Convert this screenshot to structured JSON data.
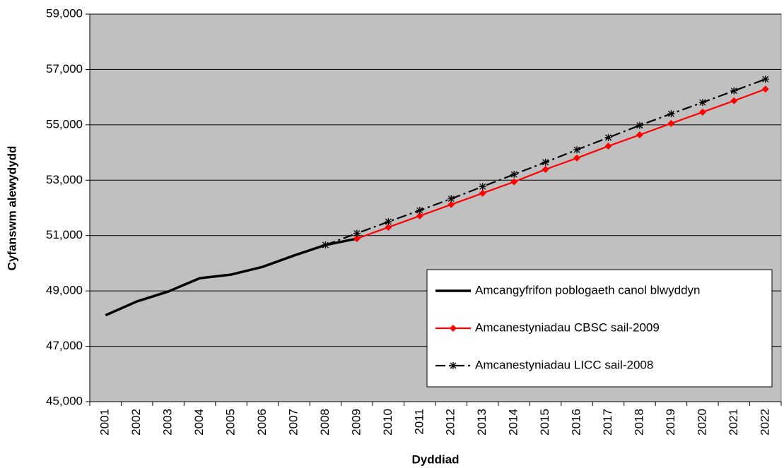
{
  "chart_data": {
    "type": "line",
    "x_label": "Dyddiad",
    "y_label": "Cyfanswm alewydydd",
    "categories": [
      "2001",
      "2002",
      "2003",
      "2004",
      "2005",
      "2006",
      "2007",
      "2008",
      "2009",
      "2010",
      "2011",
      "2012",
      "2013",
      "2014",
      "2015",
      "2016",
      "2017",
      "2018",
      "2019",
      "2020",
      "2021",
      "2022"
    ],
    "series": [
      {
        "name": "Amcangyfrifon poblogaeth canol blwyddyn",
        "color": "#000000",
        "marker": "none",
        "dash": "solid",
        "values": [
          48120,
          48620,
          48980,
          49460,
          49590,
          49870,
          50280,
          50660,
          50890,
          null,
          null,
          null,
          null,
          null,
          null,
          null,
          null,
          null,
          null,
          null,
          null,
          null
        ]
      },
      {
        "name": "Amcanestyniadau CBSC sail-2009",
        "color": "#ff0000",
        "marker": "diamond",
        "dash": "solid",
        "values": [
          null,
          null,
          null,
          null,
          null,
          null,
          null,
          null,
          50890,
          51300,
          51710,
          52120,
          52530,
          52940,
          53390,
          53800,
          54230,
          54640,
          55050,
          55460,
          55870,
          56290
        ]
      },
      {
        "name": "Amcanestyniadau LICC sail-2008",
        "color": "#000000",
        "marker": "asterisk",
        "dash": "dashdot",
        "values": [
          null,
          null,
          null,
          null,
          null,
          null,
          null,
          50660,
          51080,
          51500,
          51910,
          52330,
          52770,
          53210,
          53650,
          54100,
          54540,
          54980,
          55400,
          55810,
          56230,
          56650
        ]
      }
    ],
    "ylim": [
      45000,
      59000
    ],
    "yticks": [
      {
        "value": 45000,
        "label": "45,000"
      },
      {
        "value": 47000,
        "label": "47,000"
      },
      {
        "value": 49000,
        "label": "49,000"
      },
      {
        "value": 51000,
        "label": "51,000"
      },
      {
        "value": 53000,
        "label": "53,000"
      },
      {
        "value": 55000,
        "label": "55,000"
      },
      {
        "value": 57000,
        "label": "57,000"
      },
      {
        "value": 59000,
        "label": "59,000"
      }
    ],
    "grid": true,
    "plot_background": "#c0c0c0",
    "legend": "lower right"
  }
}
